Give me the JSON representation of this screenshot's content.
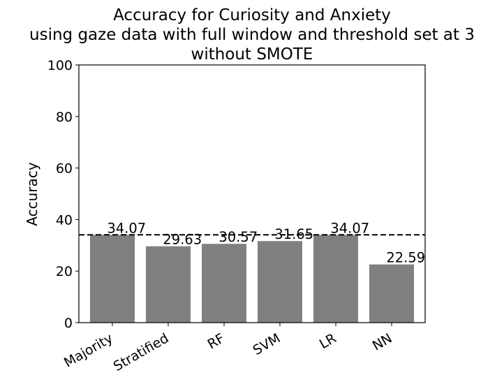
{
  "chart_data": {
    "type": "bar",
    "title_lines": [
      "Accuracy for Curiosity and Anxiety",
      "using gaze data with full window and threshold set at 3",
      "without SMOTE"
    ],
    "xlabel": "",
    "ylabel": "Accuracy",
    "categories": [
      "Majority",
      "Stratified",
      "RF",
      "SVM",
      "LR",
      "NN"
    ],
    "values": [
      34.07,
      29.63,
      30.57,
      31.65,
      34.07,
      22.59
    ],
    "value_labels": [
      "34.07",
      "29.63",
      "30.57",
      "31.65",
      "34.07",
      "22.59"
    ],
    "ylim": [
      0,
      100
    ],
    "yticks": [
      0,
      20,
      40,
      60,
      80,
      100
    ],
    "ytick_labels": [
      "0",
      "20",
      "40",
      "60",
      "80",
      "100"
    ],
    "reference_line": {
      "value": 34.07,
      "style": "dashed",
      "color": "#000000"
    },
    "bar_color": "#808080",
    "grid": false,
    "legend": "none"
  }
}
